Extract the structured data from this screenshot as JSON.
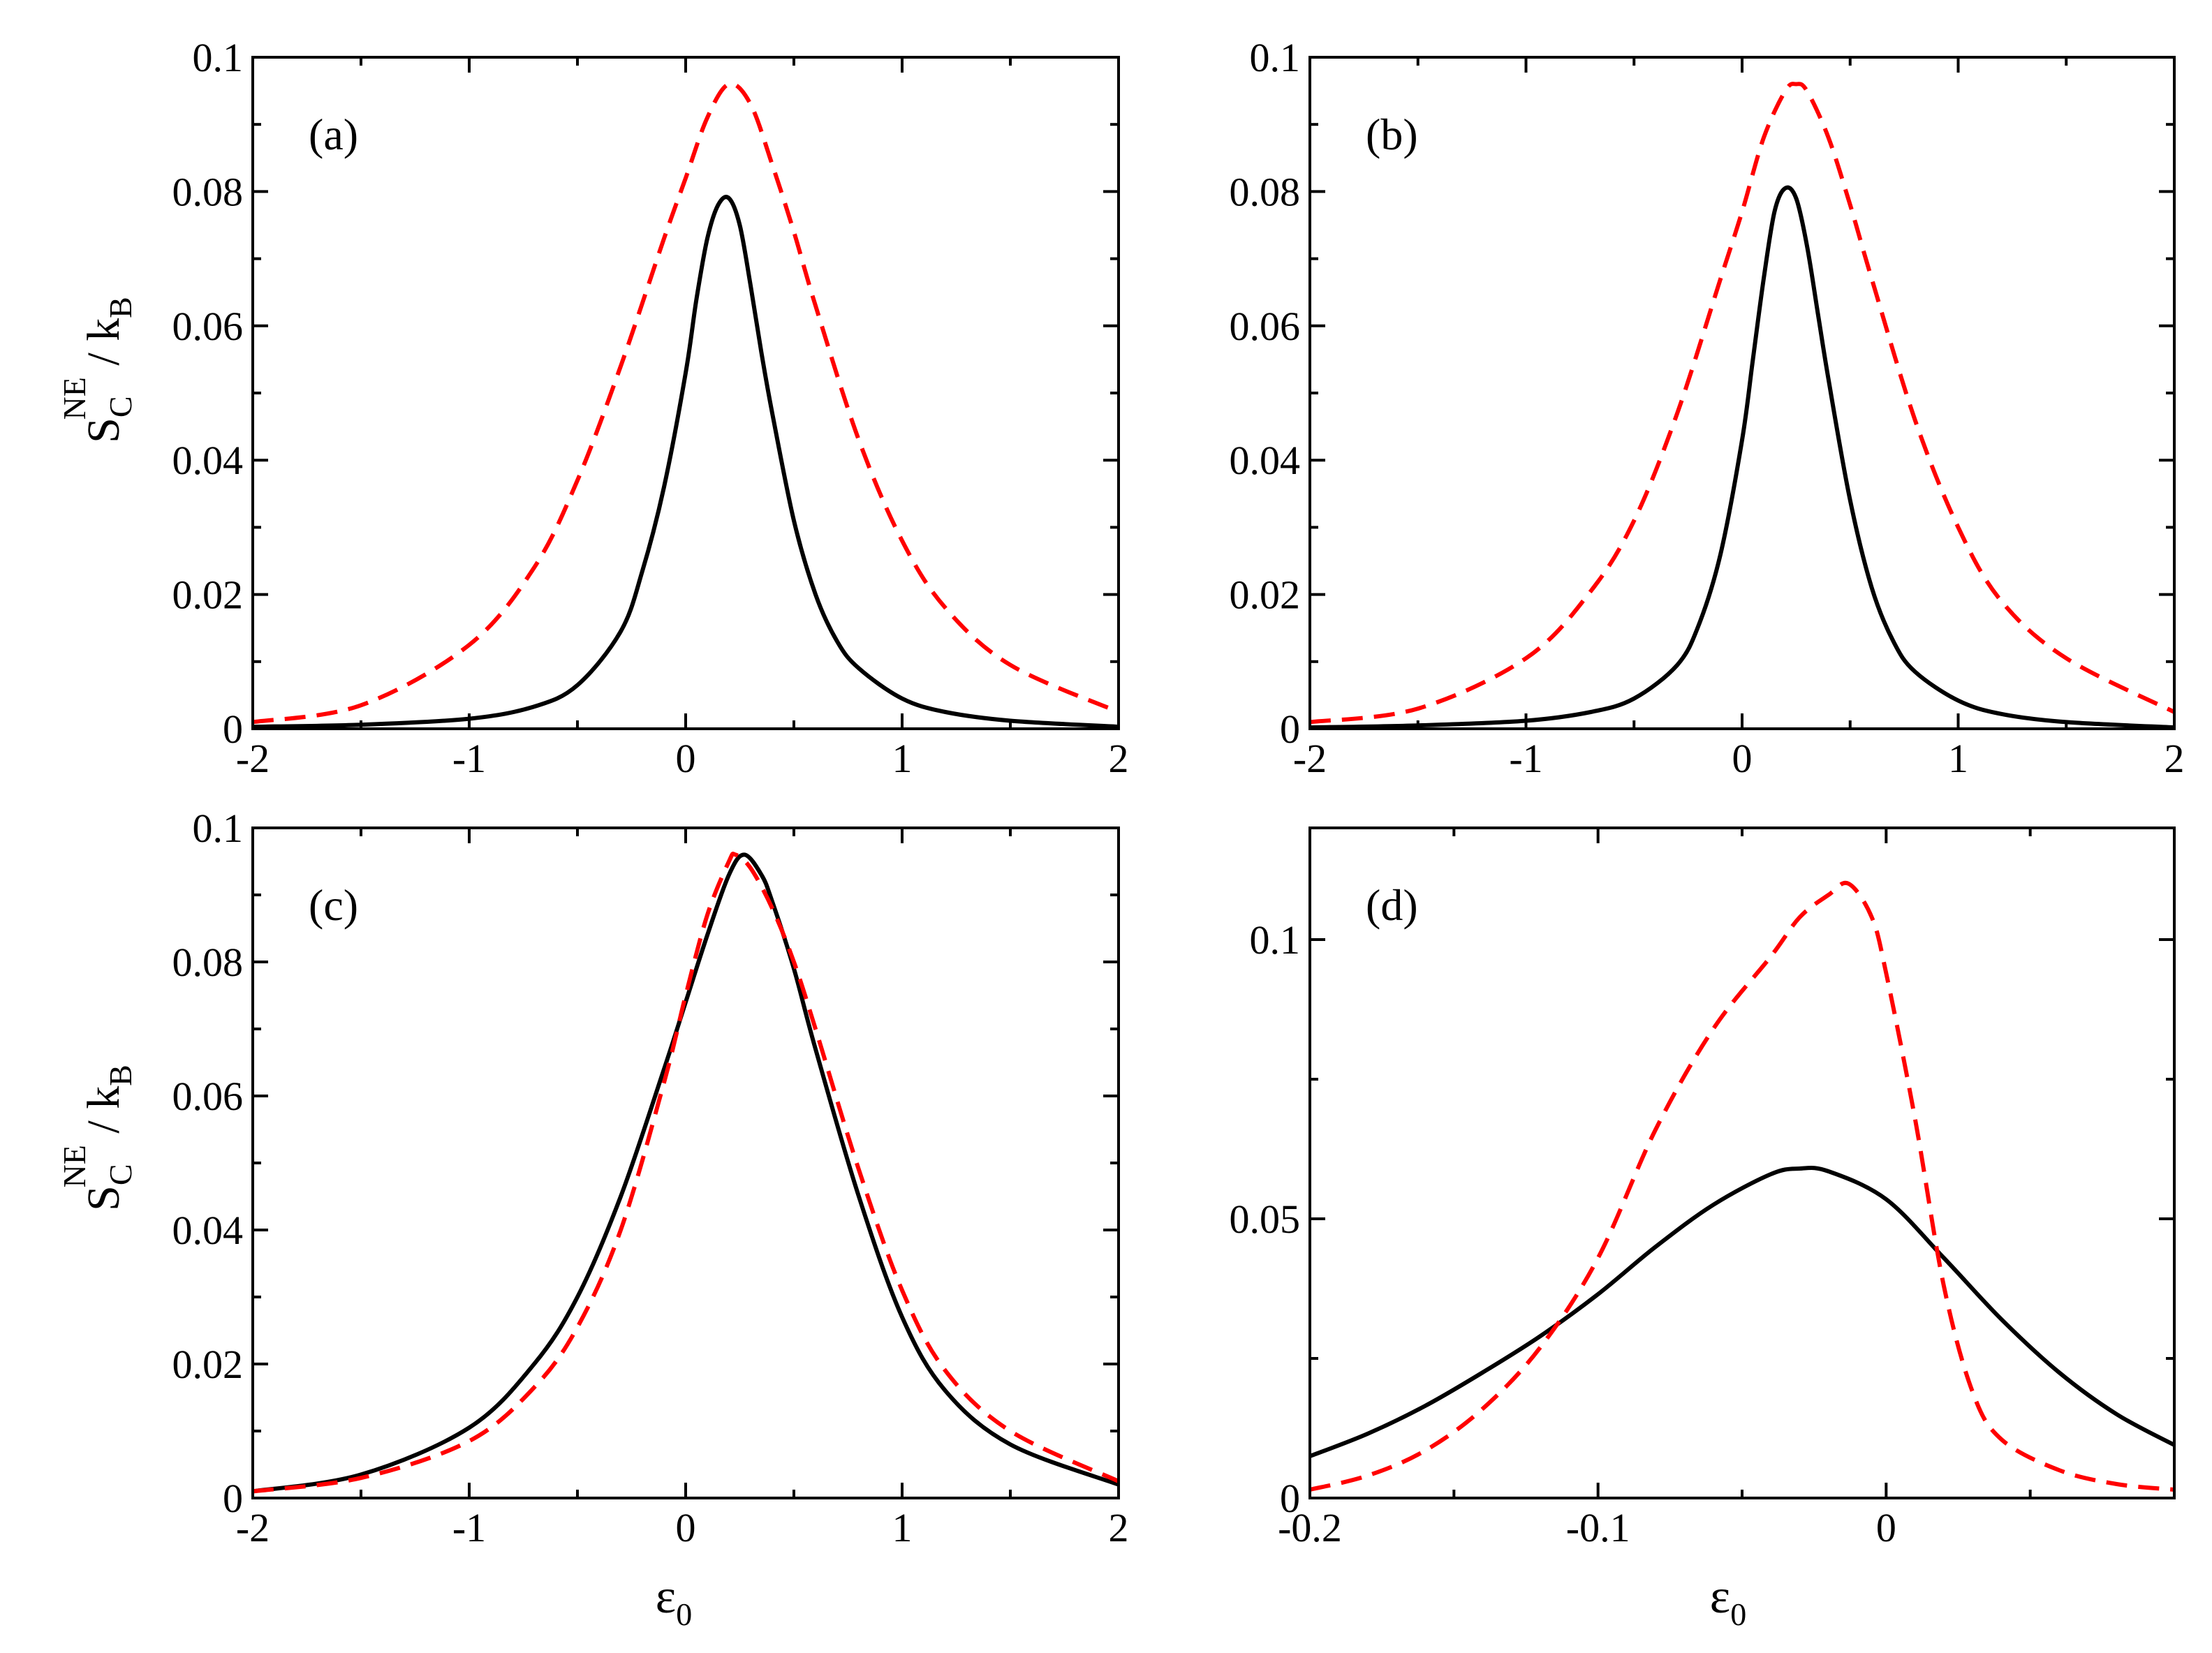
{
  "figure": {
    "ylabel": {
      "main": "S",
      "sub": "C",
      "sup": "NE",
      "rest": " / k",
      "rest_sub": "B"
    },
    "xlabel": {
      "main": "ε",
      "sub": "0"
    }
  },
  "chart_data": [
    {
      "panel": "(a)",
      "type": "line",
      "xlim": [
        -2,
        2
      ],
      "ylim": [
        0,
        0.1
      ],
      "xticks": [
        -2,
        -1,
        0,
        1,
        2
      ],
      "yticks": [
        0,
        0.02,
        0.04,
        0.06,
        0.08,
        0.1
      ],
      "ytick_labels": [
        "0",
        "0.02",
        "0.04",
        "0.06",
        "0.08",
        "0.1"
      ],
      "xtick_labels": [
        "-2",
        "-1",
        "0",
        "1",
        "2"
      ],
      "series": [
        {
          "name": "solid",
          "color": "#000000",
          "style": "solid",
          "x": [
            -2,
            -1.5,
            -1,
            -0.7,
            -0.5,
            -0.3,
            -0.2,
            -0.1,
            0,
            0.05,
            0.1,
            0.15,
            0.2,
            0.25,
            0.3,
            0.35,
            0.4,
            0.5,
            0.6,
            0.7,
            0.8,
            1,
            1.2,
            1.5,
            2
          ],
          "y": [
            0.0003,
            0.0006,
            0.0015,
            0.0033,
            0.0065,
            0.0145,
            0.0235,
            0.036,
            0.053,
            0.064,
            0.073,
            0.078,
            0.079,
            0.075,
            0.066,
            0.056,
            0.047,
            0.031,
            0.02,
            0.013,
            0.009,
            0.0045,
            0.0025,
            0.0012,
            0.0003
          ]
        },
        {
          "name": "dashed",
          "color": "#ff0000",
          "style": "dashed",
          "x": [
            -2,
            -1.5,
            -1,
            -0.7,
            -0.5,
            -0.3,
            -0.1,
            0,
            0.1,
            0.2,
            0.3,
            0.4,
            0.5,
            0.6,
            0.8,
            1,
            1.2,
            1.5,
            2
          ],
          "y": [
            0.001,
            0.0035,
            0.0125,
            0.024,
            0.037,
            0.054,
            0.073,
            0.082,
            0.091,
            0.096,
            0.093,
            0.084,
            0.074,
            0.063,
            0.043,
            0.028,
            0.018,
            0.0095,
            0.0025
          ]
        }
      ]
    },
    {
      "panel": "(b)",
      "type": "line",
      "xlim": [
        -2,
        2
      ],
      "ylim": [
        0,
        0.1
      ],
      "xticks": [
        -2,
        -1,
        0,
        1,
        2
      ],
      "yticks": [
        0,
        0.02,
        0.04,
        0.06,
        0.08,
        0.1
      ],
      "ytick_labels": [
        "0",
        "0.02",
        "0.04",
        "0.06",
        "0.08",
        "0.1"
      ],
      "xtick_labels": [
        "-2",
        "-1",
        "0",
        "1",
        "2"
      ],
      "series": [
        {
          "name": "solid",
          "color": "#000000",
          "style": "solid",
          "x": [
            -2,
            -1.5,
            -1,
            -0.7,
            -0.5,
            -0.3,
            -0.2,
            -0.1,
            0,
            0.05,
            0.1,
            0.15,
            0.2,
            0.25,
            0.3,
            0.35,
            0.4,
            0.5,
            0.6,
            0.7,
            0.8,
            1,
            1.2,
            1.5,
            2
          ],
          "y": [
            0.0002,
            0.0005,
            0.0012,
            0.0025,
            0.0045,
            0.0095,
            0.0155,
            0.026,
            0.043,
            0.055,
            0.067,
            0.077,
            0.0805,
            0.079,
            0.072,
            0.062,
            0.052,
            0.034,
            0.021,
            0.013,
            0.0085,
            0.0042,
            0.0022,
            0.001,
            0.0002
          ]
        },
        {
          "name": "dashed",
          "color": "#ff0000",
          "style": "dashed",
          "x": [
            -2,
            -1.5,
            -1,
            -0.7,
            -0.5,
            -0.3,
            -0.1,
            0,
            0.1,
            0.2,
            0.25,
            0.3,
            0.4,
            0.5,
            0.6,
            0.8,
            1,
            1.2,
            1.5,
            2
          ],
          "y": [
            0.001,
            0.003,
            0.0105,
            0.0205,
            0.031,
            0.047,
            0.067,
            0.077,
            0.088,
            0.095,
            0.096,
            0.095,
            0.088,
            0.078,
            0.067,
            0.046,
            0.03,
            0.019,
            0.0105,
            0.0025
          ]
        }
      ]
    },
    {
      "panel": "(c)",
      "type": "line",
      "xlim": [
        -2,
        2
      ],
      "ylim": [
        0,
        0.1
      ],
      "xticks": [
        -2,
        -1,
        0,
        1,
        2
      ],
      "yticks": [
        0,
        0.02,
        0.04,
        0.06,
        0.08,
        0.1
      ],
      "ytick_labels": [
        "0",
        "0.02",
        "0.04",
        "0.06",
        "0.08",
        "0.1"
      ],
      "xtick_labels": [
        "-2",
        "-1",
        "0",
        "1",
        "2"
      ],
      "series": [
        {
          "name": "solid",
          "color": "#000000",
          "style": "solid",
          "x": [
            -2,
            -1.5,
            -1,
            -0.7,
            -0.5,
            -0.3,
            -0.1,
            0,
            0.1,
            0.2,
            0.27,
            0.35,
            0.4,
            0.5,
            0.6,
            0.8,
            1,
            1.2,
            1.5,
            2
          ],
          "y": [
            0.001,
            0.0035,
            0.0105,
            0.02,
            0.03,
            0.045,
            0.064,
            0.074,
            0.084,
            0.093,
            0.096,
            0.093,
            0.089,
            0.079,
            0.067,
            0.045,
            0.027,
            0.016,
            0.008,
            0.002
          ]
        },
        {
          "name": "dashed",
          "color": "#ff0000",
          "style": "dashed",
          "x": [
            -2,
            -1.5,
            -1,
            -0.7,
            -0.5,
            -0.3,
            -0.1,
            0,
            0.1,
            0.2,
            0.23,
            0.3,
            0.4,
            0.5,
            0.6,
            0.8,
            1,
            1.2,
            1.5,
            2
          ],
          "y": [
            0.001,
            0.003,
            0.0085,
            0.0165,
            0.0255,
            0.04,
            0.062,
            0.075,
            0.087,
            0.095,
            0.096,
            0.094,
            0.088,
            0.08,
            0.07,
            0.049,
            0.031,
            0.019,
            0.01,
            0.0025
          ]
        }
      ]
    },
    {
      "panel": "(d)",
      "type": "line",
      "xlim": [
        -0.2,
        0.1
      ],
      "ylim": [
        0,
        0.12
      ],
      "xticks": [
        -0.2,
        -0.1,
        0
      ],
      "yticks": [
        0,
        0.05,
        0.1
      ],
      "ytick_labels": [
        "0",
        "0.05",
        "0.1"
      ],
      "xtick_labels": [
        "-0.2",
        "-0.1",
        "0"
      ],
      "series": [
        {
          "name": "solid",
          "color": "#000000",
          "style": "solid",
          "x": [
            -0.2,
            -0.18,
            -0.16,
            -0.14,
            -0.12,
            -0.1,
            -0.08,
            -0.06,
            -0.04,
            -0.03,
            -0.02,
            0,
            0.02,
            0.04,
            0.06,
            0.08,
            0.1
          ],
          "y": [
            0.0075,
            0.0115,
            0.0165,
            0.0225,
            0.029,
            0.0365,
            0.045,
            0.0525,
            0.058,
            0.059,
            0.0585,
            0.0535,
            0.043,
            0.032,
            0.0225,
            0.015,
            0.0095
          ]
        },
        {
          "name": "dashed",
          "color": "#ff0000",
          "style": "dashed",
          "x": [
            -0.2,
            -0.18,
            -0.16,
            -0.14,
            -0.12,
            -0.1,
            -0.08,
            -0.06,
            -0.04,
            -0.03,
            -0.02,
            -0.013,
            -0.005,
            0,
            0.01,
            0.02,
            0.03,
            0.04,
            0.06,
            0.08,
            0.1
          ],
          "y": [
            0.0015,
            0.004,
            0.0085,
            0.016,
            0.027,
            0.043,
            0.066,
            0.084,
            0.097,
            0.104,
            0.108,
            0.11,
            0.104,
            0.094,
            0.068,
            0.038,
            0.019,
            0.0105,
            0.005,
            0.0025,
            0.0015
          ]
        }
      ]
    }
  ]
}
